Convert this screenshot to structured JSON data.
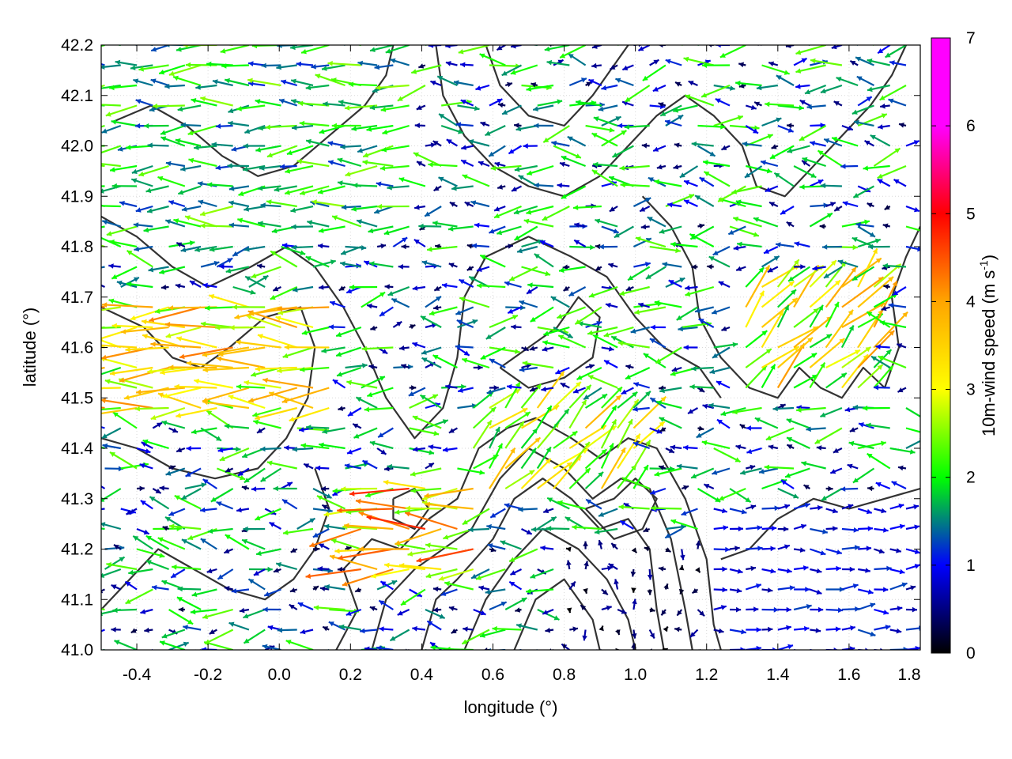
{
  "chart_data": {
    "type": "vector-field",
    "xlabel": "longitude (°)",
    "ylabel": "latitude (°)",
    "colorbar": {
      "label": "10m-wind speed (m s",
      "label_sup": "-1",
      "label_close": ")",
      "range": [
        0,
        7
      ],
      "ticks": [
        "0",
        "1",
        "2",
        "3",
        "4",
        "5",
        "6",
        "7"
      ],
      "colors": [
        "#000000",
        "#0000ff",
        "#00ff00",
        "#ffff00",
        "#ffa500",
        "#ff0000",
        "#ff00ff"
      ]
    },
    "xlim": [
      -0.5,
      1.8
    ],
    "ylim": [
      41.0,
      42.2
    ],
    "x_ticks": [
      "-0.4",
      "-0.2",
      "0.0",
      "0.2",
      "0.4",
      "0.6",
      "0.8",
      "1.0",
      "1.2",
      "1.4",
      "1.6",
      "1.8"
    ],
    "y_ticks": [
      "41.0",
      "41.1",
      "41.2",
      "41.3",
      "41.4",
      "41.5",
      "41.6",
      "41.7",
      "41.8",
      "41.9",
      "42.0",
      "42.1",
      "42.2"
    ],
    "grid": true,
    "contours": "topography",
    "wind_regions": [
      {
        "lon": [
          -0.5,
          0.15
        ],
        "lat": [
          41.45,
          41.7
        ],
        "dir": "westward",
        "speed": 4.0
      },
      {
        "lon": [
          -0.5,
          0.4
        ],
        "lat": [
          41.8,
          42.2
        ],
        "dir": "westward",
        "speed": 2.4
      },
      {
        "lon": [
          0.2,
          0.55
        ],
        "lat": [
          41.15,
          41.35
        ],
        "dir": "westward",
        "speed": 4.5
      },
      {
        "lon": [
          0.5,
          1.0
        ],
        "lat": [
          41.3,
          41.5
        ],
        "dir": "northeast",
        "speed": 3.6
      },
      {
        "lon": [
          1.3,
          1.7
        ],
        "lat": [
          41.5,
          41.75
        ],
        "dir": "northeast",
        "speed": 3.8
      },
      {
        "lon": [
          1.2,
          1.8
        ],
        "lat": [
          41.0,
          41.3
        ],
        "dir": "eastward",
        "speed": 1.2
      },
      {
        "lon": [
          0.8,
          1.2
        ],
        "lat": [
          41.0,
          41.2
        ],
        "dir": "calm",
        "speed": 0.4
      }
    ]
  }
}
